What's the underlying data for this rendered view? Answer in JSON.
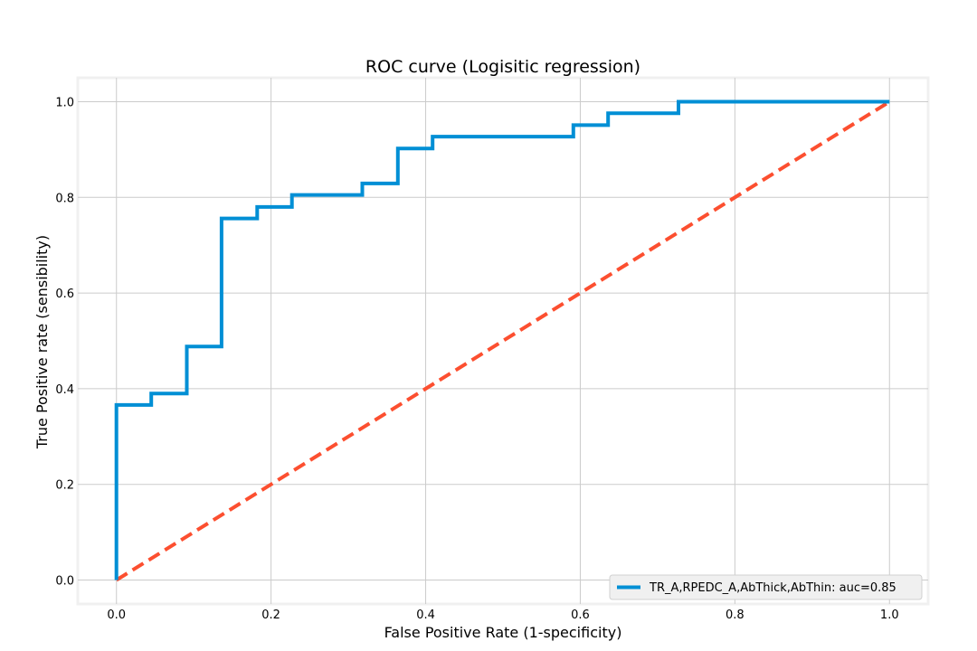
{
  "chart_data": {
    "type": "line",
    "title": "ROC curve (Logisitic regression)",
    "xlabel": "False Positive Rate (1-specificity)",
    "ylabel": "True Positive rate (sensibility)",
    "xlim": [
      -0.05,
      1.05
    ],
    "ylim": [
      -0.05,
      1.05
    ],
    "xticks": [
      0.0,
      0.2,
      0.4,
      0.6,
      0.8,
      1.0
    ],
    "yticks": [
      0.0,
      0.2,
      0.4,
      0.6,
      0.8,
      1.0
    ],
    "xtick_labels": [
      "0.0",
      "0.2",
      "0.4",
      "0.6",
      "0.8",
      "1.0"
    ],
    "ytick_labels": [
      "0.0",
      "0.2",
      "0.4",
      "0.6",
      "0.8",
      "1.0"
    ],
    "grid": true,
    "legend_position": "lower-right",
    "series": [
      {
        "name": "TR_A,RPEDC_A,AbThick,AbThin: auc=0.85",
        "color": "#008fd5",
        "style": "solid",
        "x": [
          0.0,
          0.0,
          0.045,
          0.045,
          0.091,
          0.091,
          0.136,
          0.136,
          0.182,
          0.182,
          0.227,
          0.227,
          0.318,
          0.318,
          0.364,
          0.364,
          0.409,
          0.409,
          0.591,
          0.591,
          0.636,
          0.636,
          0.727,
          0.727,
          1.0
        ],
        "y": [
          0.0,
          0.366,
          0.366,
          0.39,
          0.39,
          0.488,
          0.488,
          0.756,
          0.756,
          0.78,
          0.78,
          0.805,
          0.805,
          0.829,
          0.829,
          0.902,
          0.902,
          0.927,
          0.927,
          0.951,
          0.951,
          0.976,
          0.976,
          1.0,
          1.0
        ]
      },
      {
        "color": "#fc4f30",
        "style": "dashed",
        "x": [
          0.0,
          1.0
        ],
        "y": [
          0.0,
          1.0
        ]
      }
    ]
  },
  "colors": {
    "plot_background": "#ffffff",
    "grid": "#cbcbcb",
    "frame": "#f0f0f0"
  }
}
